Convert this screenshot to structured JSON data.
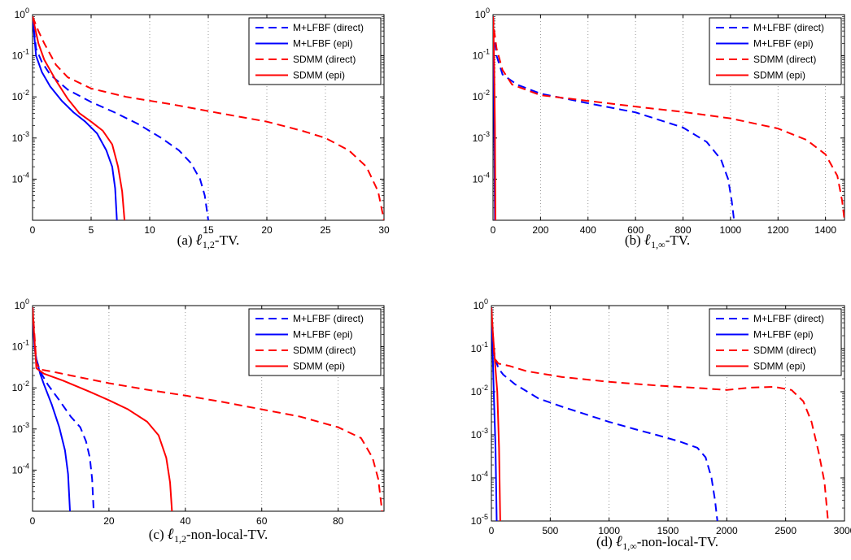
{
  "colors": {
    "blue": "#0000ff",
    "red": "#ff0000",
    "axis": "#000000",
    "grid": "#7f7f7f"
  },
  "chart_data": [
    {
      "id": "a",
      "type": "line",
      "caption": {
        "prefix": "(a) ",
        "sub": "1,2",
        "suffix": "-TV."
      },
      "xlim": [
        0,
        30
      ],
      "ylim": [
        1e-05,
        1
      ],
      "yscale": "log",
      "xticks": [
        0,
        5,
        10,
        15,
        20,
        25,
        30
      ],
      "yticks": [
        {
          "base": "10",
          "exp": "0"
        },
        {
          "base": "10",
          "exp": "-1"
        },
        {
          "base": "10",
          "exp": "-2"
        },
        {
          "base": "10",
          "exp": "-3"
        },
        {
          "base": "10",
          "exp": "-4"
        }
      ],
      "grid": "x",
      "legend": "top-right",
      "series": [
        {
          "name": "M+LFBF (direct)",
          "color": "#0000ff",
          "dash": "dashed",
          "points": [
            [
              0,
              0.9
            ],
            [
              0.3,
              0.15
            ],
            [
              0.8,
              0.07
            ],
            [
              1.5,
              0.035
            ],
            [
              3,
              0.015
            ],
            [
              5,
              0.0075
            ],
            [
              7,
              0.0042
            ],
            [
              9,
              0.0022
            ],
            [
              11,
              0.001
            ],
            [
              12.5,
              0.0005
            ],
            [
              13.5,
              0.00025
            ],
            [
              14.3,
              0.0001
            ],
            [
              14.7,
              4e-05
            ],
            [
              15,
              1e-05
            ]
          ]
        },
        {
          "name": "M+LFBF (epi)",
          "color": "#0000ff",
          "dash": "solid",
          "points": [
            [
              0,
              0.9
            ],
            [
              0.3,
              0.1
            ],
            [
              0.8,
              0.04
            ],
            [
              1.5,
              0.018
            ],
            [
              2.5,
              0.008
            ],
            [
              3.5,
              0.0042
            ],
            [
              4.5,
              0.0025
            ],
            [
              5.5,
              0.0013
            ],
            [
              6.3,
              0.0005
            ],
            [
              6.8,
              0.0002
            ],
            [
              7.05,
              6e-05
            ],
            [
              7.2,
              1e-05
            ]
          ]
        },
        {
          "name": "SDMM (direct)",
          "color": "#ff0000",
          "dash": "dashed",
          "points": [
            [
              0,
              0.9
            ],
            [
              0.5,
              0.4
            ],
            [
              1,
              0.2
            ],
            [
              2,
              0.06
            ],
            [
              3,
              0.03
            ],
            [
              5,
              0.016
            ],
            [
              8,
              0.01
            ],
            [
              12,
              0.0065
            ],
            [
              16,
              0.004
            ],
            [
              20,
              0.0025
            ],
            [
              23,
              0.0015
            ],
            [
              25,
              0.001
            ],
            [
              27,
              0.0005
            ],
            [
              28.5,
              0.0002
            ],
            [
              29.5,
              5e-05
            ],
            [
              30,
              1e-05
            ]
          ]
        },
        {
          "name": "SDMM (epi)",
          "color": "#ff0000",
          "dash": "solid",
          "points": [
            [
              0,
              0.9
            ],
            [
              0.5,
              0.2
            ],
            [
              1,
              0.08
            ],
            [
              2,
              0.025
            ],
            [
              3,
              0.009
            ],
            [
              4,
              0.004
            ],
            [
              5,
              0.0025
            ],
            [
              6,
              0.0015
            ],
            [
              6.8,
              0.0007
            ],
            [
              7.3,
              0.0002
            ],
            [
              7.65,
              5e-05
            ],
            [
              7.85,
              1e-05
            ]
          ]
        }
      ]
    },
    {
      "id": "b",
      "type": "line",
      "caption": {
        "prefix": "(b) ",
        "sub": "1,∞",
        "suffix": "-TV."
      },
      "xlim": [
        0,
        1480
      ],
      "ylim": [
        1e-05,
        1
      ],
      "yscale": "log",
      "xticks": [
        0,
        200,
        400,
        600,
        800,
        1000,
        1200,
        1400
      ],
      "yticks": [
        {
          "base": "10",
          "exp": "0"
        },
        {
          "base": "10",
          "exp": "-1"
        },
        {
          "base": "10",
          "exp": "-2"
        },
        {
          "base": "10",
          "exp": "-3"
        },
        {
          "base": "10",
          "exp": "-4"
        }
      ],
      "grid": "x",
      "legend": "top-right",
      "series": [
        {
          "name": "M+LFBF (direct)",
          "color": "#0000ff",
          "dash": "dashed",
          "points": [
            [
              0,
              0.9
            ],
            [
              5,
              0.3
            ],
            [
              15,
              0.1
            ],
            [
              40,
              0.035
            ],
            [
              100,
              0.02
            ],
            [
              200,
              0.012
            ],
            [
              400,
              0.007
            ],
            [
              600,
              0.0042
            ],
            [
              800,
              0.0018
            ],
            [
              900,
              0.0008
            ],
            [
              960,
              0.0003
            ],
            [
              990,
              0.0001
            ],
            [
              1005,
              3e-05
            ],
            [
              1015,
              1e-05
            ]
          ]
        },
        {
          "name": "M+LFBF (epi)",
          "color": "#0000ff",
          "dash": "solid",
          "points": [
            [
              0,
              0.9
            ],
            [
              2,
              0.2
            ],
            [
              4,
              0.01
            ],
            [
              6,
              0.0005
            ],
            [
              8,
              1e-05
            ]
          ]
        },
        {
          "name": "SDMM (direct)",
          "color": "#ff0000",
          "dash": "dashed",
          "points": [
            [
              0,
              0.9
            ],
            [
              5,
              0.4
            ],
            [
              15,
              0.15
            ],
            [
              40,
              0.045
            ],
            [
              80,
              0.02
            ],
            [
              200,
              0.011
            ],
            [
              400,
              0.008
            ],
            [
              600,
              0.0058
            ],
            [
              800,
              0.0043
            ],
            [
              1000,
              0.003
            ],
            [
              1200,
              0.0017
            ],
            [
              1320,
              0.0009
            ],
            [
              1400,
              0.0004
            ],
            [
              1450,
              0.00012
            ],
            [
              1470,
              3e-05
            ],
            [
              1480,
              1e-05
            ]
          ]
        },
        {
          "name": "SDMM (epi)",
          "color": "#ff0000",
          "dash": "solid",
          "points": [
            [
              0,
              0.9
            ],
            [
              2,
              0.4
            ],
            [
              5,
              0.05
            ],
            [
              8,
              0.002
            ],
            [
              10,
              1e-05
            ]
          ]
        }
      ]
    },
    {
      "id": "c",
      "type": "line",
      "caption": {
        "prefix": "(c) ",
        "sub": "1,2",
        "suffix": "-non-local-TV."
      },
      "xlim": [
        0,
        92
      ],
      "ylim": [
        1e-05,
        1
      ],
      "yscale": "log",
      "xticks": [
        0,
        20,
        40,
        60,
        80
      ],
      "yticks": [
        {
          "base": "10",
          "exp": "0"
        },
        {
          "base": "10",
          "exp": "-1"
        },
        {
          "base": "10",
          "exp": "-2"
        },
        {
          "base": "10",
          "exp": "-3"
        },
        {
          "base": "10",
          "exp": "-4"
        }
      ],
      "grid": "x",
      "legend": "top-right",
      "series": [
        {
          "name": "M+LFBF (direct)",
          "color": "#0000ff",
          "dash": "dashed",
          "points": [
            [
              0,
              0.9
            ],
            [
              0.5,
              0.1
            ],
            [
              1,
              0.05
            ],
            [
              2,
              0.025
            ],
            [
              4,
              0.012
            ],
            [
              7,
              0.005
            ],
            [
              10,
              0.002
            ],
            [
              12.5,
              0.0011
            ],
            [
              14,
              0.0005
            ],
            [
              15,
              0.0002
            ],
            [
              15.6,
              6e-05
            ],
            [
              16,
              1e-05
            ]
          ]
        },
        {
          "name": "M+LFBF (epi)",
          "color": "#0000ff",
          "dash": "solid",
          "points": [
            [
              0,
              0.9
            ],
            [
              0.5,
              0.1
            ],
            [
              1,
              0.05
            ],
            [
              2,
              0.022
            ],
            [
              3,
              0.012
            ],
            [
              5,
              0.004
            ],
            [
              7,
              0.0011
            ],
            [
              8.5,
              0.0003
            ],
            [
              9.3,
              8e-05
            ],
            [
              9.8,
              1e-05
            ]
          ]
        },
        {
          "name": "SDMM (direct)",
          "color": "#ff0000",
          "dash": "dashed",
          "points": [
            [
              0,
              0.9
            ],
            [
              0.5,
              0.2
            ],
            [
              1,
              0.04
            ],
            [
              2,
              0.028
            ],
            [
              5,
              0.025
            ],
            [
              10,
              0.02
            ],
            [
              20,
              0.013
            ],
            [
              30,
              0.009
            ],
            [
              40,
              0.0065
            ],
            [
              50,
              0.0045
            ],
            [
              60,
              0.003
            ],
            [
              70,
              0.002
            ],
            [
              80,
              0.0011
            ],
            [
              86,
              0.0006
            ],
            [
              89,
              0.0002
            ],
            [
              90.5,
              6e-05
            ],
            [
              91.5,
              1e-05
            ]
          ]
        },
        {
          "name": "SDMM (epi)",
          "color": "#ff0000",
          "dash": "solid",
          "points": [
            [
              0,
              0.9
            ],
            [
              0.5,
              0.15
            ],
            [
              1,
              0.03
            ],
            [
              3,
              0.022
            ],
            [
              8,
              0.015
            ],
            [
              15,
              0.008
            ],
            [
              20,
              0.005
            ],
            [
              25,
              0.003
            ],
            [
              30,
              0.0015
            ],
            [
              33,
              0.0007
            ],
            [
              35,
              0.0002
            ],
            [
              36,
              5e-05
            ],
            [
              36.5,
              1e-05
            ]
          ]
        }
      ]
    },
    {
      "id": "d",
      "type": "line",
      "caption": {
        "prefix": "(d) ",
        "sub": "1,∞",
        "suffix": "-non-local-TV."
      },
      "xlim": [
        0,
        3000
      ],
      "ylim": [
        1e-05,
        1
      ],
      "yscale": "log",
      "xticks": [
        0,
        500,
        1000,
        1500,
        2000,
        2500,
        3000
      ],
      "yticks": [
        {
          "base": "10",
          "exp": "0"
        },
        {
          "base": "10",
          "exp": "-1"
        },
        {
          "base": "10",
          "exp": "-2"
        },
        {
          "base": "10",
          "exp": "-3"
        },
        {
          "base": "10",
          "exp": "-4"
        },
        {
          "base": "10",
          "exp": "-5"
        }
      ],
      "grid": "x",
      "legend": "top-right",
      "series": [
        {
          "name": "M+LFBF (direct)",
          "color": "#0000ff",
          "dash": "dashed",
          "points": [
            [
              0,
              0.9
            ],
            [
              10,
              0.2
            ],
            [
              30,
              0.06
            ],
            [
              60,
              0.035
            ],
            [
              100,
              0.025
            ],
            [
              200,
              0.015
            ],
            [
              400,
              0.007
            ],
            [
              600,
              0.0045
            ],
            [
              800,
              0.003
            ],
            [
              1000,
              0.002
            ],
            [
              1200,
              0.0014
            ],
            [
              1400,
              0.001
            ],
            [
              1600,
              0.0007
            ],
            [
              1750,
              0.0005
            ],
            [
              1820,
              0.0003
            ],
            [
              1870,
              0.0001
            ],
            [
              1900,
              3e-05
            ],
            [
              1920,
              1e-05
            ]
          ]
        },
        {
          "name": "M+LFBF (epi)",
          "color": "#0000ff",
          "dash": "solid",
          "points": [
            [
              0,
              0.9
            ],
            [
              10,
              0.1
            ],
            [
              20,
              0.01
            ],
            [
              35,
              0.0005
            ],
            [
              45,
              1e-05
            ]
          ]
        },
        {
          "name": "SDMM (direct)",
          "color": "#ff0000",
          "dash": "dashed",
          "points": [
            [
              0,
              0.9
            ],
            [
              10,
              0.3
            ],
            [
              25,
              0.06
            ],
            [
              60,
              0.045
            ],
            [
              150,
              0.04
            ],
            [
              300,
              0.03
            ],
            [
              600,
              0.022
            ],
            [
              1000,
              0.017
            ],
            [
              1400,
              0.014
            ],
            [
              1800,
              0.012
            ],
            [
              2000,
              0.011
            ],
            [
              2200,
              0.0125
            ],
            [
              2400,
              0.013
            ],
            [
              2550,
              0.011
            ],
            [
              2650,
              0.006
            ],
            [
              2720,
              0.002
            ],
            [
              2780,
              0.0004
            ],
            [
              2830,
              8e-05
            ],
            [
              2860,
              1e-05
            ]
          ]
        },
        {
          "name": "SDMM (epi)",
          "color": "#ff0000",
          "dash": "solid",
          "points": [
            [
              0,
              0.9
            ],
            [
              10,
              0.3
            ],
            [
              30,
              0.05
            ],
            [
              50,
              0.01
            ],
            [
              65,
              0.0005
            ],
            [
              75,
              1e-05
            ]
          ]
        }
      ]
    }
  ]
}
